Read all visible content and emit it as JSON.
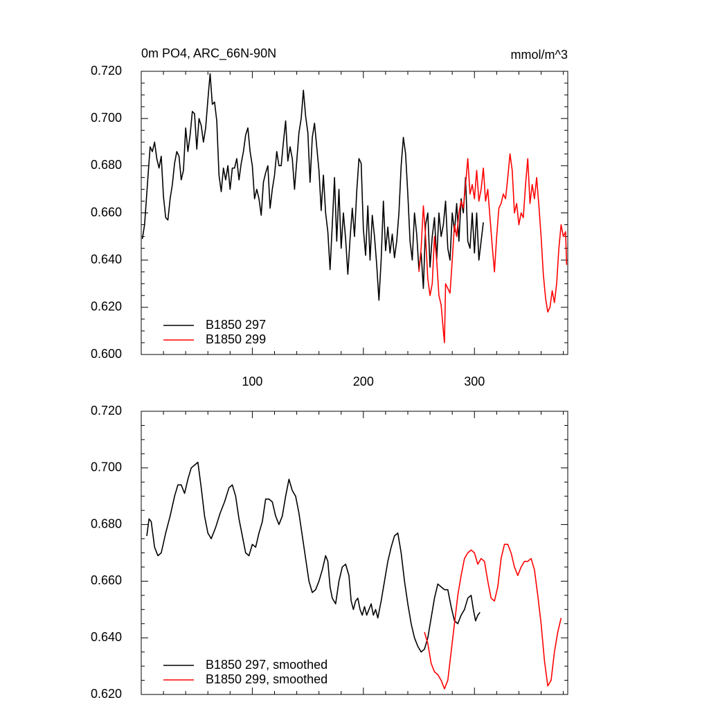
{
  "chart_data": [
    {
      "type": "line",
      "title": "0m PO4, ARC_66N-90N",
      "y_units": "mmol/m^3",
      "xlim": [
        0,
        384
      ],
      "xticks": [
        100,
        200,
        300
      ],
      "show_xtick_labels": true,
      "ylim": [
        0.6,
        0.72
      ],
      "yticks": [
        {
          "value": 0.6,
          "label": "0.600"
        },
        {
          "value": 0.62,
          "label": "0.620"
        },
        {
          "value": 0.64,
          "label": "0.640"
        },
        {
          "value": 0.66,
          "label": "0.660"
        },
        {
          "value": 0.68,
          "label": "0.680"
        },
        {
          "value": 0.7,
          "label": "0.700"
        },
        {
          "value": 0.72,
          "label": "0.720"
        }
      ],
      "legend": "lower left",
      "series": [
        {
          "name": "B1850 297",
          "color": "#000000",
          "x": [
            1,
            3,
            6,
            8,
            10,
            12,
            14,
            16,
            18,
            20,
            22,
            24,
            26,
            28,
            30,
            32,
            34,
            36,
            38,
            40,
            42,
            44,
            46,
            48,
            50,
            52,
            54,
            56,
            58,
            60,
            62,
            64,
            66,
            68,
            70,
            72,
            74,
            76,
            78,
            80,
            82,
            84,
            86,
            88,
            90,
            92,
            94,
            96,
            98,
            100,
            102,
            104,
            106,
            108,
            110,
            112,
            114,
            116,
            118,
            120,
            122,
            124,
            126,
            128,
            130,
            132,
            134,
            136,
            138,
            140,
            142,
            144,
            146,
            148,
            150,
            152,
            154,
            156,
            158,
            160,
            162,
            164,
            166,
            168,
            170,
            172,
            174,
            176,
            178,
            180,
            182,
            184,
            186,
            188,
            190,
            192,
            194,
            196,
            198,
            200,
            202,
            204,
            206,
            208,
            210,
            212,
            214,
            216,
            218,
            220,
            222,
            224,
            226,
            228,
            230,
            232,
            234,
            236,
            238,
            240,
            242,
            244,
            246,
            248,
            250,
            252,
            254,
            256,
            258,
            260,
            262,
            264,
            266,
            268,
            270,
            272,
            274,
            276,
            278,
            280,
            282,
            284,
            286,
            288,
            290,
            292,
            294,
            296,
            298,
            300,
            302,
            304,
            306,
            308
          ],
          "values": [
            0.649,
            0.655,
            0.675,
            0.688,
            0.686,
            0.69,
            0.683,
            0.679,
            0.684,
            0.667,
            0.658,
            0.657,
            0.666,
            0.672,
            0.681,
            0.686,
            0.684,
            0.674,
            0.678,
            0.696,
            0.686,
            0.693,
            0.703,
            0.702,
            0.687,
            0.7,
            0.697,
            0.69,
            0.696,
            0.708,
            0.719,
            0.706,
            0.707,
            0.699,
            0.676,
            0.669,
            0.679,
            0.674,
            0.68,
            0.67,
            0.679,
            0.679,
            0.683,
            0.674,
            0.681,
            0.686,
            0.693,
            0.696,
            0.686,
            0.68,
            0.666,
            0.67,
            0.666,
            0.659,
            0.673,
            0.677,
            0.68,
            0.662,
            0.67,
            0.676,
            0.686,
            0.68,
            0.68,
            0.69,
            0.699,
            0.682,
            0.688,
            0.683,
            0.67,
            0.682,
            0.694,
            0.7,
            0.712,
            0.701,
            0.694,
            0.673,
            0.692,
            0.698,
            0.688,
            0.678,
            0.661,
            0.676,
            0.66,
            0.652,
            0.636,
            0.655,
            0.675,
            0.648,
            0.67,
            0.645,
            0.66,
            0.649,
            0.634,
            0.649,
            0.662,
            0.65,
            0.669,
            0.683,
            0.681,
            0.653,
            0.642,
            0.663,
            0.64,
            0.659,
            0.65,
            0.638,
            0.623,
            0.64,
            0.665,
            0.644,
            0.654,
            0.643,
            0.651,
            0.641,
            0.648,
            0.66,
            0.68,
            0.692,
            0.685,
            0.668,
            0.648,
            0.64,
            0.66,
            0.651,
            0.636,
            0.643,
            0.628,
            0.655,
            0.66,
            0.637,
            0.65,
            0.658,
            0.64,
            0.66,
            0.65,
            0.655,
            0.665,
            0.645,
            0.64,
            0.66,
            0.652,
            0.664,
            0.648,
            0.666,
            0.66,
            0.675,
            0.648,
            0.645,
            0.66,
            0.643,
            0.66,
            0.64,
            0.648,
            0.656
          ]
        },
        {
          "name": "B1850 299",
          "color": "#ff0000",
          "x": [
            250,
            252,
            254,
            256,
            258,
            260,
            262,
            264,
            266,
            268,
            270,
            272,
            273,
            274,
            276,
            278,
            280,
            282,
            284,
            286,
            288,
            290,
            292,
            294,
            296,
            298,
            300,
            302,
            304,
            306,
            308,
            310,
            312,
            314,
            316,
            318,
            320,
            322,
            324,
            326,
            328,
            330,
            332,
            334,
            336,
            338,
            340,
            342,
            344,
            346,
            348,
            350,
            352,
            354,
            356,
            358,
            360,
            362,
            364,
            366,
            368,
            370,
            372,
            374,
            376,
            378,
            380,
            382,
            383
          ],
          "values": [
            0.635,
            0.645,
            0.663,
            0.65,
            0.632,
            0.625,
            0.63,
            0.65,
            0.64,
            0.625,
            0.621,
            0.61,
            0.605,
            0.63,
            0.628,
            0.626,
            0.64,
            0.655,
            0.65,
            0.66,
            0.665,
            0.662,
            0.672,
            0.683,
            0.668,
            0.672,
            0.666,
            0.678,
            0.665,
            0.67,
            0.679,
            0.665,
            0.67,
            0.658,
            0.646,
            0.635,
            0.65,
            0.662,
            0.664,
            0.668,
            0.666,
            0.675,
            0.685,
            0.678,
            0.66,
            0.664,
            0.655,
            0.66,
            0.658,
            0.672,
            0.683,
            0.664,
            0.672,
            0.666,
            0.675,
            0.663,
            0.65,
            0.634,
            0.624,
            0.618,
            0.62,
            0.627,
            0.622,
            0.63,
            0.645,
            0.655,
            0.65,
            0.652,
            0.638
          ]
        }
      ]
    },
    {
      "type": "line",
      "xlim": [
        0,
        384
      ],
      "xticks": [
        100,
        200,
        300
      ],
      "show_xtick_labels": false,
      "ylim": [
        0.62,
        0.72
      ],
      "yticks": [
        {
          "value": 0.62,
          "label": "0.620"
        },
        {
          "value": 0.64,
          "label": "0.640"
        },
        {
          "value": 0.66,
          "label": "0.660"
        },
        {
          "value": 0.68,
          "label": "0.680"
        },
        {
          "value": 0.7,
          "label": "0.700"
        },
        {
          "value": 0.72,
          "label": "0.720"
        }
      ],
      "legend": "lower left",
      "series": [
        {
          "name": "B1850 297, smoothed",
          "color": "#000000",
          "x": [
            5,
            7,
            9,
            12,
            15,
            18,
            22,
            26,
            30,
            33,
            36,
            39,
            42,
            45,
            48,
            51,
            54,
            57,
            60,
            63,
            67,
            71,
            75,
            79,
            82,
            85,
            88,
            91,
            94,
            97,
            100,
            103,
            106,
            109,
            112,
            115,
            118,
            121,
            124,
            127,
            130,
            133,
            136,
            139,
            142,
            145,
            148,
            151,
            154,
            157,
            160,
            163,
            166,
            168,
            170,
            172,
            175,
            178,
            181,
            184,
            187,
            189,
            191,
            193,
            195,
            197,
            199,
            201,
            203,
            205,
            207,
            209,
            211,
            213,
            216,
            219,
            222,
            225,
            228,
            231,
            234,
            237,
            240,
            243,
            246,
            249,
            252,
            255,
            258,
            261,
            264,
            267,
            270,
            273,
            276,
            279,
            282,
            285,
            288,
            291,
            294,
            297,
            299,
            301,
            303,
            305
          ],
          "values": [
            0.676,
            0.682,
            0.681,
            0.672,
            0.669,
            0.67,
            0.677,
            0.683,
            0.69,
            0.694,
            0.694,
            0.691,
            0.696,
            0.7,
            0.701,
            0.702,
            0.693,
            0.683,
            0.677,
            0.675,
            0.679,
            0.684,
            0.688,
            0.693,
            0.694,
            0.69,
            0.682,
            0.676,
            0.67,
            0.669,
            0.673,
            0.672,
            0.677,
            0.681,
            0.689,
            0.689,
            0.688,
            0.683,
            0.68,
            0.683,
            0.69,
            0.696,
            0.692,
            0.69,
            0.684,
            0.676,
            0.668,
            0.66,
            0.656,
            0.657,
            0.66,
            0.664,
            0.669,
            0.667,
            0.658,
            0.654,
            0.652,
            0.66,
            0.665,
            0.666,
            0.662,
            0.653,
            0.65,
            0.653,
            0.654,
            0.65,
            0.648,
            0.651,
            0.648,
            0.65,
            0.652,
            0.648,
            0.65,
            0.647,
            0.653,
            0.66,
            0.667,
            0.672,
            0.676,
            0.677,
            0.67,
            0.66,
            0.652,
            0.645,
            0.64,
            0.637,
            0.635,
            0.636,
            0.64,
            0.647,
            0.654,
            0.659,
            0.658,
            0.657,
            0.657,
            0.651,
            0.646,
            0.645,
            0.648,
            0.65,
            0.654,
            0.655,
            0.65,
            0.646,
            0.648,
            0.649
          ]
        },
        {
          "name": "B1850 299, smoothed",
          "color": "#ff0000",
          "x": [
            255,
            258,
            261,
            264,
            267,
            270,
            273,
            276,
            279,
            282,
            285,
            288,
            291,
            294,
            297,
            300,
            303,
            306,
            309,
            312,
            315,
            318,
            321,
            324,
            327,
            330,
            333,
            336,
            339,
            342,
            345,
            348,
            351,
            354,
            357,
            360,
            363,
            366,
            369,
            372,
            375,
            378
          ],
          "values": [
            0.642,
            0.638,
            0.631,
            0.628,
            0.627,
            0.625,
            0.622,
            0.625,
            0.635,
            0.645,
            0.655,
            0.662,
            0.668,
            0.67,
            0.671,
            0.67,
            0.666,
            0.668,
            0.667,
            0.66,
            0.654,
            0.653,
            0.658,
            0.668,
            0.673,
            0.673,
            0.67,
            0.665,
            0.662,
            0.665,
            0.667,
            0.667,
            0.668,
            0.664,
            0.655,
            0.645,
            0.632,
            0.623,
            0.625,
            0.635,
            0.642,
            0.647
          ]
        }
      ]
    }
  ]
}
